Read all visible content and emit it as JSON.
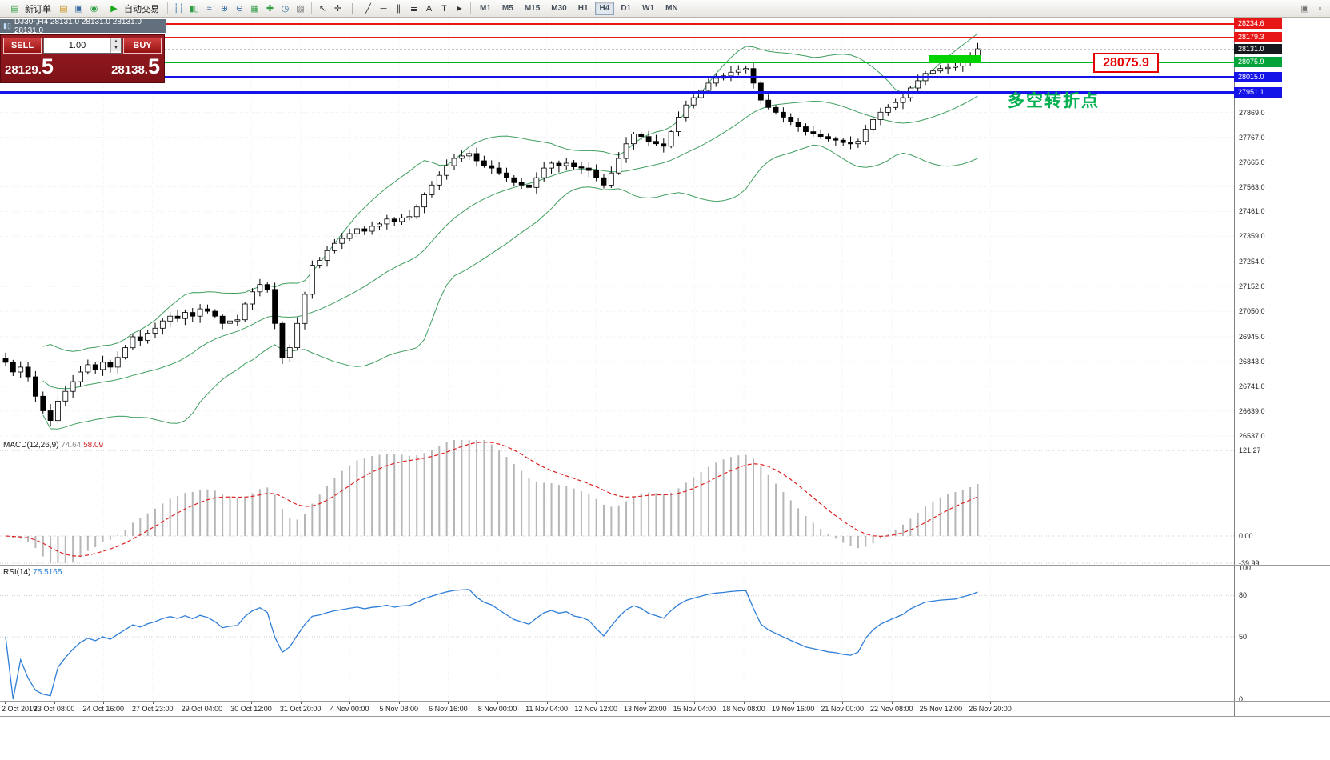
{
  "toolbar": {
    "new_order_label": "新订单",
    "auto_trading_label": "自动交易",
    "left_icons": [
      {
        "name": "charts-profile-icon",
        "glyph": "▤",
        "color": "#c9911c"
      },
      {
        "name": "navigator-icon",
        "glyph": "▣",
        "color": "#3a6ea5"
      },
      {
        "name": "refresh-icon",
        "glyph": "◉",
        "color": "#2f9e44"
      }
    ],
    "chart_type_icons": [
      {
        "name": "bars-icon",
        "glyph": "┆┆",
        "color": "#3a6ea5"
      },
      {
        "name": "candlestick-icon",
        "glyph": "▮▯",
        "color": "#2f9e44"
      },
      {
        "name": "line-chart-icon",
        "glyph": "≈",
        "color": "#3a6ea5"
      }
    ],
    "zoom_icons": [
      {
        "name": "zoom-in-icon",
        "glyph": "⊕",
        "color": "#3a6ea5"
      },
      {
        "name": "zoom-out-icon",
        "glyph": "⊖",
        "color": "#3a6ea5"
      }
    ],
    "layout_icons": [
      {
        "name": "tile-windows-icon",
        "glyph": "▦",
        "color": "#2f9e44"
      },
      {
        "name": "indicators-icon",
        "glyph": "✚",
        "color": "#2f9e44"
      },
      {
        "name": "periods-icon",
        "glyph": "◷",
        "color": "#3a6ea5"
      },
      {
        "name": "templates-icon",
        "glyph": "▨",
        "color": "#777777"
      }
    ],
    "draw_icons": [
      {
        "name": "cursor-icon",
        "glyph": "↖",
        "color": "#333333"
      },
      {
        "name": "crosshair-icon",
        "glyph": "✛",
        "color": "#333333"
      },
      {
        "name": "vertical-line-icon",
        "glyph": "│",
        "color": "#333333"
      },
      {
        "name": "trendline-icon",
        "glyph": "╱",
        "color": "#333333"
      },
      {
        "name": "horizontal-line-icon",
        "glyph": "─",
        "color": "#333333"
      },
      {
        "name": "channel-icon",
        "glyph": "∥",
        "color": "#333333"
      },
      {
        "name": "fibonacci-icon",
        "glyph": "≣",
        "color": "#333333"
      },
      {
        "name": "text-icon",
        "glyph": "A",
        "color": "#333333"
      },
      {
        "name": "label-icon",
        "glyph": "T",
        "color": "#333333"
      },
      {
        "name": "arrows-icon",
        "glyph": "►",
        "color": "#333333"
      }
    ],
    "timeframes": [
      "M1",
      "M5",
      "M15",
      "M30",
      "H1",
      "H4",
      "D1",
      "W1",
      "MN"
    ],
    "active_timeframe": "H4",
    "right_icons": [
      {
        "name": "dock-window-icon",
        "glyph": "▣",
        "color": "#777777"
      },
      {
        "name": "restore-window-icon",
        "glyph": "▫",
        "color": "#777777"
      }
    ]
  },
  "chart": {
    "symbol_info": "DJ30-,H4  28131.0 28131.0 28131.0 28131.0",
    "trade_panel": {
      "sell_label": "SELL",
      "buy_label": "BUY",
      "volume": "1.00",
      "sell_price": "28129.",
      "sell_price_big": "5",
      "buy_price": "28138.",
      "buy_price_big": "5"
    },
    "annotations": {
      "price_box": "28075.9",
      "turning_point_text": "多空转折点"
    },
    "bid_price": 28131.0,
    "hlines": [
      {
        "price": 28234.6,
        "color": "#e81717",
        "thickness": 2
      },
      {
        "price": 28179.3,
        "color": "#e81717",
        "thickness": 2
      },
      {
        "price": 28075.9,
        "color": "#00b41e",
        "thickness": 2
      },
      {
        "price": 28015.0,
        "color": "#1414e8",
        "thickness": 2
      },
      {
        "price": 27951.1,
        "color": "#1414e8",
        "thickness": 3
      }
    ],
    "price_tags": [
      {
        "value": "28234.6",
        "price": 28234.6,
        "color": "#e81717"
      },
      {
        "value": "28179.3",
        "price": 28179.3,
        "color": "#e81717"
      },
      {
        "value": "28131.0",
        "price": 28131.0,
        "color": "#15181d"
      },
      {
        "value": "28075.9",
        "price": 28075.9,
        "color": "#00a33a"
      },
      {
        "value": "28015.0",
        "price": 28015.0,
        "color": "#1414e8"
      },
      {
        "value": "27951.1",
        "price": 27951.1,
        "color": "#1414e8"
      }
    ],
    "grid_labels": [
      "27869.0",
      "27767.0",
      "27665.0",
      "27563.0",
      "27461.0",
      "27359.0",
      "27254.0",
      "27152.0",
      "27050.0",
      "26945.0",
      "26843.0",
      "26741.0",
      "26639.0",
      "26537.0"
    ]
  },
  "macd": {
    "label": "MACD(12,26,9)",
    "value_main": "74.64",
    "value_signal": "58.09",
    "axis_labels": [
      {
        "text": "121.27",
        "value": 121.27
      },
      {
        "text": "0.00",
        "value": 0
      },
      {
        "text": "-39.99",
        "value": -39.99
      }
    ]
  },
  "rsi": {
    "label": "RSI(14)",
    "value": "75.5165",
    "axis_labels": [
      {
        "text": "100",
        "value": 100
      },
      {
        "text": "80",
        "value": 80
      },
      {
        "text": "50",
        "value": 50
      },
      {
        "text": "0",
        "value": 0
      }
    ],
    "levels": [
      80,
      50
    ]
  },
  "time_axis": [
    "2 Oct 2019",
    "23 Oct 08:00",
    "24 Oct 16:00",
    "27 Oct 23:00",
    "29 Oct 04:00",
    "30 Oct 12:00",
    "31 Oct 20:00",
    "4 Nov 00:00",
    "5 Nov 08:00",
    "6 Nov 16:00",
    "8 Nov 00:00",
    "11 Nov 04:00",
    "12 Nov 12:00",
    "13 Nov 20:00",
    "15 Nov 04:00",
    "18 Nov 08:00",
    "19 Nov 16:00",
    "21 Nov 00:00",
    "22 Nov 08:00",
    "25 Nov 12:00",
    "26 Nov 20:00"
  ],
  "chart_data": {
    "type": "candlestick",
    "symbol": "DJ30-",
    "timeframe": "H4",
    "visible_price_range": [
      26537.0,
      28234.6
    ],
    "closes": [
      26840,
      26800,
      26820,
      26780,
      26700,
      26640,
      26600,
      26680,
      26720,
      26760,
      26800,
      26830,
      26810,
      26840,
      26820,
      26860,
      26900,
      26945,
      26930,
      26960,
      26980,
      27010,
      27030,
      27020,
      27045,
      27030,
      27060,
      27050,
      27030,
      27000,
      27010,
      27015,
      27080,
      27130,
      27160,
      27140,
      27000,
      26860,
      26900,
      27000,
      27120,
      27240,
      27260,
      27300,
      27330,
      27350,
      27370,
      27390,
      27380,
      27400,
      27410,
      27430,
      27420,
      27435,
      27440,
      27480,
      27530,
      27570,
      27610,
      27650,
      27680,
      27690,
      27700,
      27670,
      27650,
      27640,
      27620,
      27600,
      27580,
      27570,
      27560,
      27600,
      27640,
      27660,
      27650,
      27660,
      27645,
      27640,
      27630,
      27600,
      27570,
      27620,
      27680,
      27740,
      27780,
      27770,
      27750,
      27740,
      27730,
      27790,
      27850,
      27900,
      27930,
      27960,
      27990,
      28010,
      28020,
      28035,
      28045,
      28050,
      27990,
      27920,
      27890,
      27870,
      27850,
      27830,
      27810,
      27790,
      27780,
      27770,
      27760,
      27755,
      27745,
      27740,
      27750,
      27800,
      27840,
      27870,
      27890,
      27910,
      27930,
      27970,
      28000,
      28030,
      28040,
      28050,
      28055,
      28060,
      28080,
      28100,
      28131
    ],
    "indicators": [
      {
        "name": "Bollinger Bands",
        "period": 20,
        "deviation": 2,
        "color": "#3f9e5f"
      },
      {
        "name": "MACD",
        "fast": 12,
        "slow": 26,
        "signal": 9,
        "current": [
          74.64,
          58.09
        ]
      },
      {
        "name": "RSI",
        "period": 14,
        "current": 75.5165
      }
    ]
  }
}
